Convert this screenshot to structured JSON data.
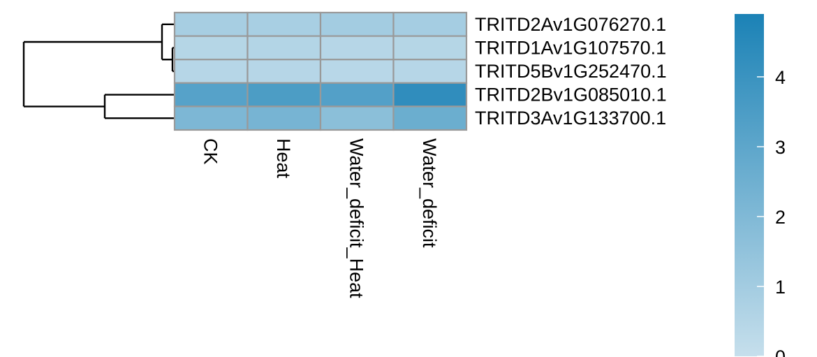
{
  "chart_data": {
    "type": "heatmap",
    "title": "",
    "columns": [
      "CK",
      "Heat",
      "Water_deficit_Heat",
      "Water_deficit"
    ],
    "rows": [
      "TRITD2Av1G076270.1",
      "TRITD1Av1G107570.1",
      "TRITD5Bv1G252470.1",
      "TRITD2Bv1G085010.1",
      "TRITD3Av1G133700.1"
    ],
    "values": [
      [
        0.9,
        0.85,
        1.0,
        0.95
      ],
      [
        0.5,
        0.55,
        0.45,
        0.5
      ],
      [
        0.45,
        0.45,
        0.4,
        0.45
      ],
      [
        3.2,
        3.5,
        3.3,
        4.3
      ],
      [
        2.1,
        2.25,
        1.7,
        2.6
      ]
    ],
    "color_scale": {
      "min": 0,
      "max": 4.9,
      "low_color": "#c6dfec",
      "high_color": "#1b82b6",
      "ticks": [
        0,
        1,
        2,
        3,
        4
      ]
    },
    "cell_border_color": "#999999",
    "row_dendrogram": true
  }
}
